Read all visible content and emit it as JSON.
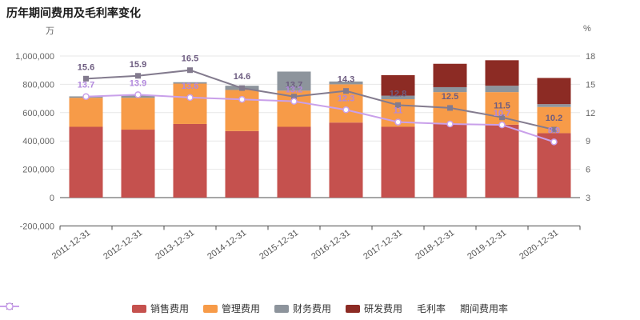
{
  "title": "历年期间费用及毛利率变化",
  "axes": {
    "left_unit": "万",
    "right_unit": "%",
    "left_ticks": [
      "1,000,000",
      "800,000",
      "600,000",
      "400,000",
      "200,000",
      "0",
      "-200,000"
    ],
    "left_tick_values": [
      1000000,
      800000,
      600000,
      400000,
      200000,
      0,
      -200000
    ],
    "right_ticks": [
      "18",
      "15",
      "12",
      "9",
      "6",
      "3"
    ],
    "right_tick_values": [
      18,
      15,
      12,
      9,
      6,
      3
    ],
    "left_range": [
      -200000,
      1000000
    ],
    "right_range": [
      3,
      18
    ]
  },
  "chart_data": {
    "type": "stacked-bar+line",
    "title": "历年期间费用及毛利率变化",
    "categories": [
      "2011-12-31",
      "2012-12-31",
      "2013-12-31",
      "2014-12-31",
      "2015-12-31",
      "2016-12-31",
      "2017-12-31",
      "2018-12-31",
      "2019-12-31",
      "2020-12-31"
    ],
    "left_axis_unit": "万",
    "right_axis_unit": "%",
    "grid": true,
    "legend_position": "bottom",
    "bar_series": [
      {
        "name": "销售费用",
        "color": "#c5514e",
        "values": [
          500000,
          480000,
          520000,
          470000,
          500000,
          530000,
          500000,
          520000,
          515000,
          455000
        ]
      },
      {
        "name": "管理费用",
        "color": "#f79b48",
        "values": [
          205000,
          225000,
          285000,
          290000,
          255000,
          270000,
          195000,
          225000,
          230000,
          185000
        ]
      },
      {
        "name": "财务费用",
        "color": "#8d949c",
        "values": [
          10000,
          20000,
          10000,
          30000,
          135000,
          20000,
          25000,
          35000,
          45000,
          20000
        ]
      },
      {
        "name": "研发费用",
        "color": "#8c2b24",
        "values": [
          0,
          0,
          0,
          0,
          0,
          0,
          145000,
          165000,
          180000,
          185000
        ]
      }
    ],
    "line_series": [
      {
        "name": "毛利率",
        "axis": "right",
        "marker": "square",
        "color": "#837b8e",
        "label_color": "#6d5c80",
        "values": [
          15.6,
          15.9,
          16.5,
          14.6,
          13.7,
          14.3,
          12.8,
          12.5,
          11.5,
          10.2
        ],
        "labels": [
          "15.6",
          "15.9",
          "16.5",
          "14.6",
          "13.7",
          "14.3",
          "12.8",
          "12.5",
          "11.5",
          "10.2"
        ]
      },
      {
        "name": "期间费用率",
        "axis": "right",
        "marker": "circle",
        "color": "#c9a0ea",
        "label_color": "#b288dd",
        "values": [
          13.7,
          13.9,
          13.6,
          13.4,
          13.2,
          12.3,
          11,
          10.8,
          10.7,
          8.9
        ],
        "labels": [
          "13.7",
          "13.9",
          "13.6",
          "",
          "13.2",
          "12.3",
          "11",
          "",
          "10.7",
          "8.9"
        ]
      }
    ]
  }
}
